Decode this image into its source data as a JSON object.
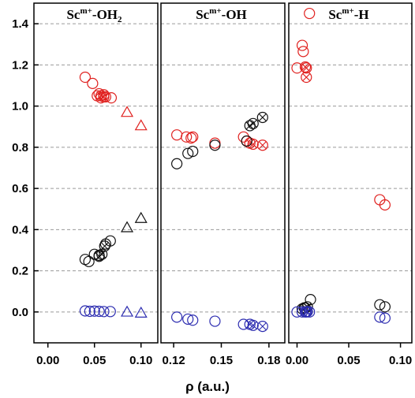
{
  "chart_data": {
    "type": "scatter",
    "xlabel": "ρ (a.u.)",
    "ylim": [
      -0.15,
      1.5
    ],
    "yticks": [
      "0.0",
      "0.2",
      "0.4",
      "0.6",
      "0.8",
      "1.0",
      "1.2",
      "1.4"
    ],
    "grid": "horizontal dashed",
    "colors": {
      "red": "#e0211f",
      "black": "#111111",
      "blue": "#2c2cb0"
    },
    "panels": [
      {
        "title_main": "Sc",
        "title_sup": "m+",
        "title_rest": "-OH",
        "title_sub": "2",
        "xlim": [
          -0.015,
          0.118
        ],
        "xticks": [
          "0.00",
          "0.05",
          "0.10"
        ],
        "series": [
          {
            "color": "red",
            "points": [
              {
                "x": 0.04,
                "y": 1.14,
                "m": "circle"
              },
              {
                "x": 0.048,
                "y": 1.11,
                "m": "circle"
              },
              {
                "x": 0.053,
                "y": 1.05,
                "m": "circle"
              },
              {
                "x": 0.055,
                "y": 1.06,
                "m": "circle"
              },
              {
                "x": 0.057,
                "y": 1.04,
                "m": "circle"
              },
              {
                "x": 0.06,
                "y": 1.055,
                "m": "circle"
              },
              {
                "x": 0.062,
                "y": 1.045,
                "m": "circle"
              },
              {
                "x": 0.068,
                "y": 1.04,
                "m": "circle"
              },
              {
                "x": 0.057,
                "y": 1.05,
                "m": "circle-x"
              },
              {
                "x": 0.06,
                "y": 1.045,
                "m": "circle-x"
              },
              {
                "x": 0.085,
                "y": 0.97,
                "m": "triangle"
              },
              {
                "x": 0.1,
                "y": 0.905,
                "m": "triangle"
              }
            ]
          },
          {
            "color": "black",
            "points": [
              {
                "x": 0.04,
                "y": 0.255,
                "m": "circle"
              },
              {
                "x": 0.044,
                "y": 0.245,
                "m": "circle"
              },
              {
                "x": 0.05,
                "y": 0.28,
                "m": "circle"
              },
              {
                "x": 0.055,
                "y": 0.275,
                "m": "circle"
              },
              {
                "x": 0.062,
                "y": 0.33,
                "m": "circle"
              },
              {
                "x": 0.067,
                "y": 0.345,
                "m": "circle"
              },
              {
                "x": 0.055,
                "y": 0.27,
                "m": "circle-x"
              },
              {
                "x": 0.058,
                "y": 0.28,
                "m": "circle-x"
              },
              {
                "x": 0.061,
                "y": 0.32,
                "m": "circle-x"
              },
              {
                "x": 0.085,
                "y": 0.41,
                "m": "triangle"
              },
              {
                "x": 0.1,
                "y": 0.455,
                "m": "triangle"
              }
            ]
          },
          {
            "color": "blue",
            "points": [
              {
                "x": 0.04,
                "y": 0.005,
                "m": "circle"
              },
              {
                "x": 0.045,
                "y": 0.003,
                "m": "circle"
              },
              {
                "x": 0.05,
                "y": 0.004,
                "m": "circle"
              },
              {
                "x": 0.055,
                "y": 0.003,
                "m": "circle"
              },
              {
                "x": 0.06,
                "y": 0.002,
                "m": "circle"
              },
              {
                "x": 0.067,
                "y": 0.002,
                "m": "circle"
              },
              {
                "x": 0.085,
                "y": 0.0,
                "m": "triangle"
              },
              {
                "x": 0.1,
                "y": -0.005,
                "m": "triangle"
              }
            ]
          }
        ]
      },
      {
        "title_main": "Sc",
        "title_sup": "m+",
        "title_rest": "-OH",
        "title_sub": "",
        "xlim": [
          0.112,
          0.19
        ],
        "xticks": [
          "0.12",
          "0.15",
          "0.18"
        ],
        "series": [
          {
            "color": "red",
            "points": [
              {
                "x": 0.122,
                "y": 0.86,
                "m": "circle"
              },
              {
                "x": 0.128,
                "y": 0.85,
                "m": "circle"
              },
              {
                "x": 0.131,
                "y": 0.845,
                "m": "circle"
              },
              {
                "x": 0.132,
                "y": 0.85,
                "m": "circle"
              },
              {
                "x": 0.146,
                "y": 0.82,
                "m": "circle"
              },
              {
                "x": 0.164,
                "y": 0.85,
                "m": "circle"
              },
              {
                "x": 0.166,
                "y": 0.83,
                "m": "circle"
              },
              {
                "x": 0.168,
                "y": 0.82,
                "m": "circle-x"
              },
              {
                "x": 0.17,
                "y": 0.815,
                "m": "circle-x"
              },
              {
                "x": 0.176,
                "y": 0.81,
                "m": "circle-x"
              }
            ]
          },
          {
            "color": "black",
            "points": [
              {
                "x": 0.122,
                "y": 0.72,
                "m": "circle"
              },
              {
                "x": 0.129,
                "y": 0.77,
                "m": "circle"
              },
              {
                "x": 0.132,
                "y": 0.78,
                "m": "circle"
              },
              {
                "x": 0.146,
                "y": 0.81,
                "m": "circle"
              },
              {
                "x": 0.166,
                "y": 0.83,
                "m": "circle"
              },
              {
                "x": 0.168,
                "y": 0.905,
                "m": "circle-x"
              },
              {
                "x": 0.17,
                "y": 0.915,
                "m": "circle-x"
              },
              {
                "x": 0.176,
                "y": 0.945,
                "m": "circle-x"
              }
            ]
          },
          {
            "color": "blue",
            "points": [
              {
                "x": 0.122,
                "y": -0.025,
                "m": "circle"
              },
              {
                "x": 0.129,
                "y": -0.035,
                "m": "circle"
              },
              {
                "x": 0.132,
                "y": -0.04,
                "m": "circle"
              },
              {
                "x": 0.146,
                "y": -0.045,
                "m": "circle"
              },
              {
                "x": 0.164,
                "y": -0.06,
                "m": "circle"
              },
              {
                "x": 0.168,
                "y": -0.06,
                "m": "circle-x"
              },
              {
                "x": 0.17,
                "y": -0.065,
                "m": "circle-x"
              },
              {
                "x": 0.176,
                "y": -0.07,
                "m": "circle-x"
              }
            ]
          }
        ]
      },
      {
        "title_main": "Sc",
        "title_sup": "m+",
        "title_rest": "-H",
        "title_sub": "",
        "xlim": [
          -0.008,
          0.111
        ],
        "xticks": [
          "0.00",
          "0.05",
          "0.10"
        ],
        "series": [
          {
            "color": "red",
            "points": [
              {
                "x": 0.0,
                "y": 1.185,
                "m": "circle"
              },
              {
                "x": 0.005,
                "y": 1.295,
                "m": "circle"
              },
              {
                "x": 0.006,
                "y": 1.265,
                "m": "circle"
              },
              {
                "x": 0.012,
                "y": 1.45,
                "m": "circle"
              },
              {
                "x": 0.08,
                "y": 0.545,
                "m": "circle"
              },
              {
                "x": 0.085,
                "y": 0.52,
                "m": "circle"
              },
              {
                "x": 0.008,
                "y": 1.19,
                "m": "circle-x"
              },
              {
                "x": 0.009,
                "y": 1.185,
                "m": "circle-x"
              },
              {
                "x": 0.009,
                "y": 1.14,
                "m": "circle-x"
              }
            ]
          },
          {
            "color": "black",
            "points": [
              {
                "x": 0.005,
                "y": 0.015,
                "m": "circle"
              },
              {
                "x": 0.007,
                "y": 0.02,
                "m": "circle"
              },
              {
                "x": 0.013,
                "y": 0.06,
                "m": "circle"
              },
              {
                "x": 0.08,
                "y": 0.035,
                "m": "circle"
              },
              {
                "x": 0.085,
                "y": 0.025,
                "m": "circle"
              },
              {
                "x": 0.008,
                "y": 0.02,
                "m": "circle-x"
              },
              {
                "x": 0.01,
                "y": 0.025,
                "m": "circle-x"
              }
            ]
          },
          {
            "color": "blue",
            "points": [
              {
                "x": 0.0,
                "y": 0.0,
                "m": "circle"
              },
              {
                "x": 0.005,
                "y": 0.0,
                "m": "circle"
              },
              {
                "x": 0.008,
                "y": 0.0,
                "m": "circle"
              },
              {
                "x": 0.012,
                "y": 0.0,
                "m": "circle"
              },
              {
                "x": 0.08,
                "y": -0.025,
                "m": "circle"
              },
              {
                "x": 0.085,
                "y": -0.03,
                "m": "circle"
              },
              {
                "x": 0.009,
                "y": 0.0,
                "m": "circle-x"
              },
              {
                "x": 0.01,
                "y": 0.002,
                "m": "circle-x"
              }
            ]
          }
        ]
      }
    ]
  }
}
